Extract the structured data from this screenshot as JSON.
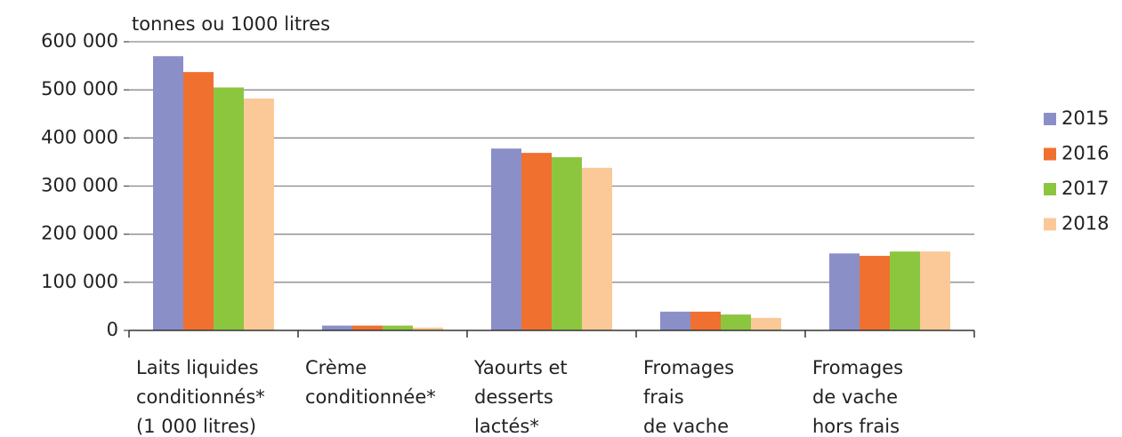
{
  "chart_data": {
    "type": "bar",
    "y_axis_label": "tonnes ou 1000 litres",
    "categories": [
      [
        "Laits liquides",
        "conditionnés*",
        "(1 000 litres)"
      ],
      [
        "Crème",
        "conditionnée*"
      ],
      [
        "Yaourts et",
        "desserts",
        "lactés*"
      ],
      [
        "Fromages",
        "frais",
        "de vache"
      ],
      [
        "Fromages",
        "de vache",
        "hors frais"
      ]
    ],
    "series": [
      {
        "name": "2015",
        "color": "#8b8fc8",
        "values": [
          570000,
          10000,
          378000,
          39000,
          160000
        ]
      },
      {
        "name": "2016",
        "color": "#f07030",
        "values": [
          537000,
          10000,
          369000,
          39000,
          155000
        ]
      },
      {
        "name": "2017",
        "color": "#8cc63f",
        "values": [
          505000,
          10000,
          360000,
          33000,
          164000
        ]
      },
      {
        "name": "2018",
        "color": "#fbc898",
        "values": [
          482000,
          6000,
          338000,
          26000,
          164000
        ]
      }
    ],
    "ylim": [
      0,
      600000
    ],
    "yticks": [
      0,
      {
        "value": 100000,
        "label": "100 000"
      },
      {
        "value": 200000,
        "label": "200 000"
      },
      {
        "value": 300000,
        "label": "300 000"
      },
      {
        "value": 400000,
        "label": "400 000"
      },
      {
        "value": 500000,
        "label": "500 000"
      },
      {
        "value": 600000,
        "label": "600 000"
      }
    ],
    "grid": true,
    "legend": "right"
  }
}
